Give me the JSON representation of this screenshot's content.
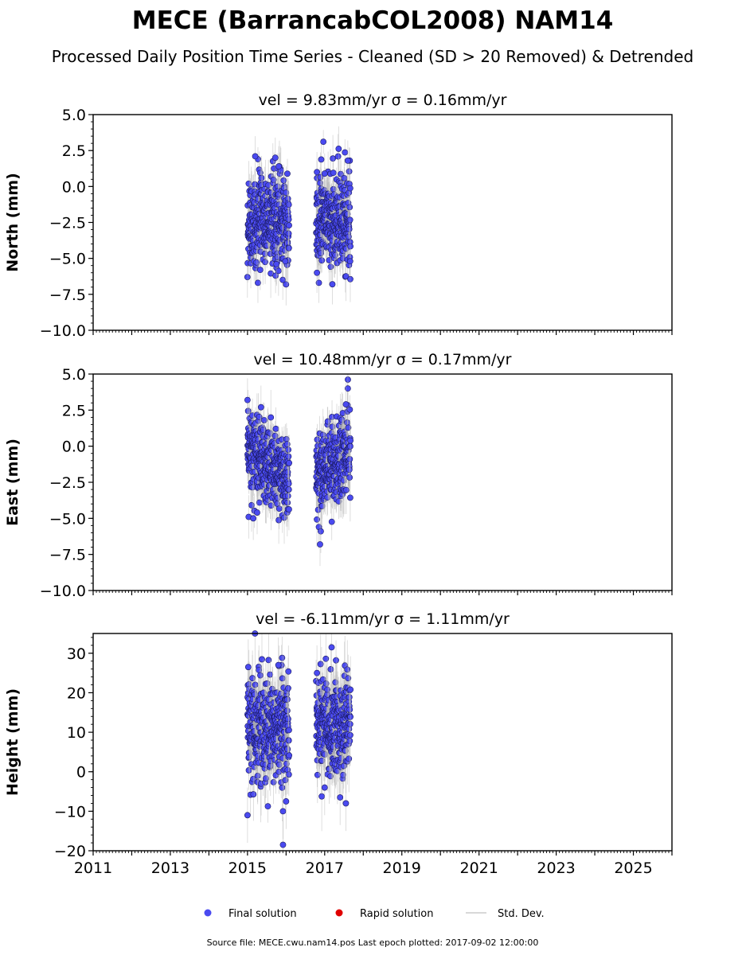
{
  "header": {
    "title": "MECE (BarrancabCOL2008) NAM14",
    "subtitle": "Processed Daily Position Time Series - Cleaned (SD > 20 Removed) & Detrended"
  },
  "legend": {
    "placement": "bottom-center",
    "items": [
      {
        "label": "Final solution",
        "color": "#4a4af0",
        "marker": "circle"
      },
      {
        "label": "Rapid solution",
        "color": "#e00000",
        "marker": "circle"
      },
      {
        "label": "Std. Dev.",
        "color": "#cccccc",
        "marker": "line"
      }
    ]
  },
  "footer": {
    "source": "Source file: MECE.cwu.nam14.pos  Last epoch plotted: 2017-09-02 12:00:00"
  },
  "colors": {
    "final": "#4a4af0",
    "final_edge": "#1a1a60",
    "rapid": "#e00000",
    "std_dev": "#b5b5b5"
  },
  "chart_data": [
    {
      "type": "scatter",
      "title": "vel = 9.83mm/yr   σ = 0.16mm/yr",
      "ylabel": "North (mm)",
      "xlim": [
        2011,
        2026
      ],
      "ylim": [
        -10,
        5
      ],
      "yticks": [
        -10,
        -7.5,
        -5,
        -2.5,
        0,
        2.5,
        5
      ],
      "ytick_labels": [
        "−10.0",
        "−7.5",
        "−5.0",
        "−2.5",
        "0.0",
        "2.5",
        "5.0"
      ],
      "xticks": [
        2011,
        2013,
        2015,
        2017,
        2019,
        2021,
        2023,
        2025
      ],
      "grid": false,
      "series": [
        {
          "name": "Final solution",
          "segments": [
            {
              "x_range": [
                2015.0,
                2016.08
              ],
              "mean": -2.3,
              "spread": 1.45,
              "outliers": [
                [
                  2015.2,
                  2.1
                ],
                [
                  2015.72,
                  2.0
                ],
                [
                  2015.81,
                  1.4
                ],
                [
                  2015.27,
                  -6.7
                ],
                [
                  2015.33,
                  -5.8
                ],
                [
                  2015.75,
                  -5.4
                ],
                [
                  2015.98,
                  -5.2
                ]
              ]
            },
            {
              "x_range": [
                2016.78,
                2017.67
              ],
              "mean": -2.3,
              "spread": 1.55,
              "outliers": [
                [
                  2016.8,
                  1.0
                ],
                [
                  2017.0,
                  0.9
                ],
                [
                  2017.6,
                  1.8
                ],
                [
                  2016.85,
                  -6.7
                ],
                [
                  2016.8,
                  -6.0
                ],
                [
                  2017.2,
                  -6.8
                ],
                [
                  2017.66,
                  -5.2
                ]
              ]
            }
          ]
        }
      ],
      "std_dev_mm": 1.4
    },
    {
      "type": "scatter",
      "title": "vel = 10.48mm/yr   σ = 0.17mm/yr",
      "ylabel": "East (mm)",
      "xlim": [
        2011,
        2026
      ],
      "ylim": [
        -10,
        5
      ],
      "yticks": [
        -10,
        -7.5,
        -5,
        -2.5,
        0,
        2.5,
        5
      ],
      "ytick_labels": [
        "−10.0",
        "−7.5",
        "−5.0",
        "−2.5",
        "0.0",
        "2.5",
        "5.0"
      ],
      "xticks": [
        2011,
        2013,
        2015,
        2017,
        2019,
        2021,
        2023,
        2025
      ],
      "grid": false,
      "series": [
        {
          "name": "Final solution",
          "segments": [
            {
              "x_range": [
                2015.0,
                2016.08
              ],
              "mean": -1.2,
              "trend": -2.0,
              "spread": 1.35,
              "outliers": [
                [
                  2015.0,
                  3.2
                ],
                [
                  2015.35,
                  2.7
                ],
                [
                  2015.03,
                  -4.9
                ],
                [
                  2015.15,
                  -5.0
                ],
                [
                  2015.25,
                  -4.6
                ]
              ]
            },
            {
              "x_range": [
                2016.78,
                2017.67
              ],
              "mean": -1.3,
              "trend": 1.0,
              "spread": 1.4,
              "outliers": [
                [
                  2017.6,
                  4.0
                ],
                [
                  2017.55,
                  2.9
                ],
                [
                  2016.85,
                  -5.6
                ],
                [
                  2016.9,
                  -5.9
                ],
                [
                  2016.88,
                  -6.8
                ]
              ]
            }
          ]
        }
      ],
      "std_dev_mm": 1.5
    },
    {
      "type": "scatter",
      "title": "vel = -6.11mm/yr   σ = 1.11mm/yr",
      "ylabel": "Height (mm)",
      "xlim": [
        2011,
        2026
      ],
      "ylim": [
        -20,
        35
      ],
      "yticks": [
        -20,
        -10,
        0,
        10,
        20,
        30
      ],
      "ytick_labels": [
        "−20",
        "−10",
        "0",
        "10",
        "20",
        "30"
      ],
      "xticks": [
        2011,
        2013,
        2015,
        2017,
        2019,
        2021,
        2023,
        2025
      ],
      "xtick_labels": [
        "2011",
        "2013",
        "2015",
        "2017",
        "2019",
        "2021",
        "2023",
        "2025"
      ],
      "grid": false,
      "series": [
        {
          "name": "Final solution",
          "segments": [
            {
              "x_range": [
                2015.0,
                2016.08
              ],
              "mean": 11.0,
              "spread": 6.5,
              "outliers": [
                [
                  2015.02,
                  26.5
                ],
                [
                  2015.8,
                  27.0
                ],
                [
                  2015.0,
                  -11.0
                ],
                [
                  2015.92,
                  -10.0
                ],
                [
                  2015.92,
                  -18.5
                ],
                [
                  2016.0,
                  -7.5
                ]
              ]
            },
            {
              "x_range": [
                2016.78,
                2017.67
              ],
              "mean": 11.5,
              "spread": 6.0,
              "outliers": [
                [
                  2017.18,
                  31.5
                ],
                [
                  2016.8,
                  25.0
                ],
                [
                  2017.0,
                  -4.0
                ],
                [
                  2017.4,
                  -6.5
                ],
                [
                  2017.55,
                  -8.0
                ]
              ]
            }
          ]
        }
      ],
      "std_dev_mm": 7.0
    }
  ]
}
